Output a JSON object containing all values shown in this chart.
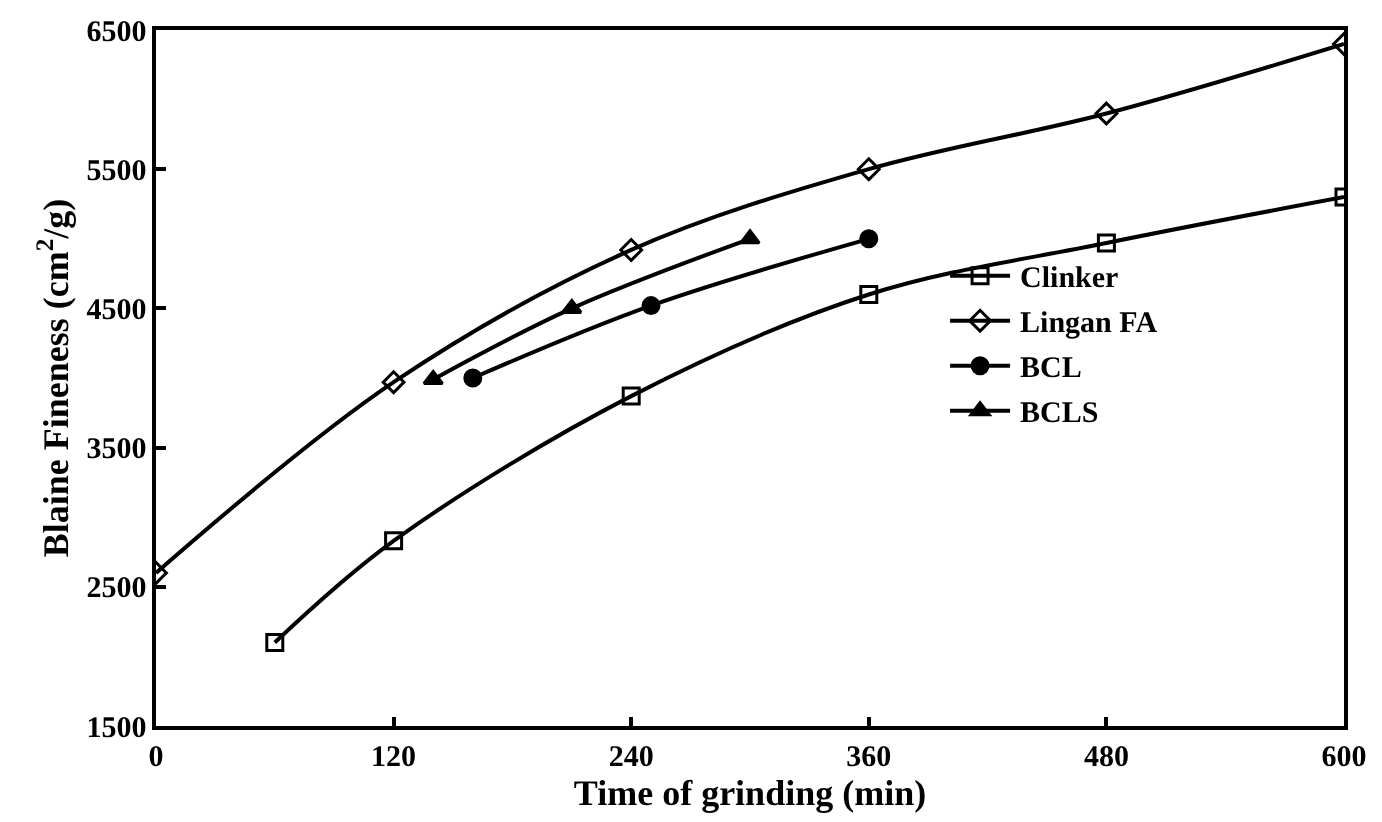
{
  "chart_data": {
    "type": "line",
    "xlabel": "Time of grinding (min)",
    "ylabel": "Blaine Fineness (cm$^{2}$/g)",
    "xlim": [
      0,
      600
    ],
    "xticks": [
      0,
      120,
      240,
      360,
      480,
      600
    ],
    "ylim": [
      1500,
      6500
    ],
    "yticks": [
      1500,
      2500,
      3500,
      4500,
      5500,
      6500
    ],
    "legend": "right",
    "line_style": "solid",
    "series": [
      {
        "name": "Clinker",
        "color": "#000000",
        "marker": "square",
        "x": [
          60,
          120,
          240,
          360,
          480,
          600
        ],
        "values": [
          2100,
          2830,
          3870,
          4600,
          4970,
          5300
        ]
      },
      {
        "name": "Lingan FA",
        "color": "#000000",
        "marker": "diamond",
        "x": [
          0,
          120,
          240,
          360,
          480,
          600
        ],
        "values": [
          2600,
          3970,
          4920,
          5500,
          5900,
          6400
        ]
      },
      {
        "name": "BCL",
        "color": "#000000",
        "marker": "circle",
        "x": [
          160,
          250,
          360
        ],
        "values": [
          4000,
          4520,
          5000
        ]
      },
      {
        "name": "BCLS",
        "color": "#000000",
        "marker": "triangle",
        "x": [
          140,
          210,
          300
        ],
        "values": [
          3990,
          4500,
          5000
        ]
      }
    ]
  }
}
